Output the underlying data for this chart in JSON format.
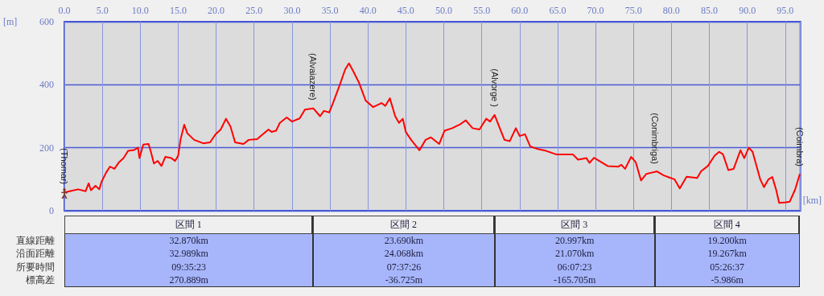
{
  "chart_data": [
    {
      "type": "line",
      "xlabel": "[km]",
      "ylabel": "[m]",
      "x": [
        0,
        0.7,
        1.8,
        2.8,
        3.2,
        3.5,
        4.1,
        4.6,
        4.9,
        5.5,
        6.0,
        6.6,
        7.2,
        7.8,
        8.4,
        9.2,
        9.7,
        9.9,
        10.4,
        11.1,
        11.4,
        11.8,
        12.3,
        12.8,
        13.3,
        14.1,
        14.6,
        15.0,
        15.3,
        15.8,
        16.2,
        17.1,
        18.3,
        19.2,
        19.9,
        20.6,
        21.3,
        21.9,
        22.5,
        23.6,
        24.3,
        25.4,
        26.3,
        26.9,
        27.3,
        27.9,
        28.4,
        29.3,
        30.0,
        31.0,
        31.7,
        32.8,
        33.7,
        34.2,
        34.9,
        35.4,
        36.3,
        37.0,
        37.5,
        38.0,
        38.8,
        39.7,
        40.7,
        41.8,
        42.3,
        42.9,
        43.6,
        44.1,
        44.6,
        45.0,
        45.7,
        46.8,
        47.6,
        48.3,
        49.4,
        50.1,
        51.1,
        52.2,
        52.9,
        53.8,
        54.7,
        55.6,
        56.1,
        56.7,
        57.3,
        58.0,
        58.7,
        59.5,
        60.0,
        60.7,
        61.4,
        62.4,
        63.5,
        64.8,
        67.0,
        67.7,
        68.8,
        69.2,
        69.8,
        71.6,
        73.0,
        73.4,
        73.9,
        74.7,
        75.3,
        76.0,
        76.7,
        77.4,
        77.8,
        78.1,
        79.0,
        79.9,
        80.4,
        81.1,
        82.0,
        83.4,
        83.9,
        84.8,
        85.7,
        86.3,
        86.8,
        87.5,
        88.2,
        89.1,
        89.6,
        90.2,
        90.7,
        91.7,
        92.2,
        92.8,
        93.3,
        93.8,
        94.2,
        95.1,
        95.6,
        96.3,
        96.9
      ],
      "values": [
        58,
        62,
        68,
        62,
        87,
        65,
        79,
        68,
        92,
        121,
        140,
        133,
        154,
        167,
        190,
        193,
        200,
        167,
        210,
        212,
        187,
        150,
        158,
        142,
        171,
        167,
        158,
        175,
        225,
        273,
        246,
        225,
        214,
        217,
        242,
        258,
        292,
        267,
        217,
        212,
        225,
        227,
        246,
        258,
        250,
        254,
        279,
        296,
        283,
        293,
        321,
        325,
        300,
        317,
        312,
        342,
        400,
        448,
        468,
        446,
        408,
        350,
        329,
        342,
        333,
        357,
        300,
        279,
        292,
        250,
        225,
        192,
        225,
        233,
        212,
        254,
        262,
        275,
        287,
        262,
        258,
        292,
        283,
        304,
        267,
        225,
        221,
        262,
        237,
        243,
        204,
        196,
        190,
        179,
        179,
        162,
        167,
        152,
        168,
        142,
        140,
        146,
        133,
        171,
        154,
        96,
        117,
        121,
        123,
        125,
        112,
        104,
        100,
        71,
        108,
        104,
        125,
        142,
        175,
        187,
        179,
        129,
        133,
        192,
        167,
        200,
        187,
        100,
        75,
        100,
        107,
        67,
        25,
        27,
        29,
        67,
        115
      ],
      "color": "#ff0000",
      "marker": "none",
      "xlim": [
        0,
        97
      ],
      "xticks": [
        {
          "value": 0,
          "label": "0.0"
        },
        {
          "value": 5,
          "label": "5.0"
        },
        {
          "value": 10,
          "label": "10.0"
        },
        {
          "value": 15,
          "label": "15.0"
        },
        {
          "value": 20,
          "label": "20.0"
        },
        {
          "value": 25,
          "label": "25.0"
        },
        {
          "value": 30,
          "label": "30.0"
        },
        {
          "value": 35,
          "label": "35.0"
        },
        {
          "value": 40,
          "label": "40.0"
        },
        {
          "value": 45,
          "label": "45.0"
        },
        {
          "value": 50,
          "label": "50.0"
        },
        {
          "value": 55,
          "label": "55.0"
        },
        {
          "value": 60,
          "label": "60.0"
        },
        {
          "value": 65,
          "label": "65.0"
        },
        {
          "value": 70,
          "label": "70.0"
        },
        {
          "value": 75,
          "label": "75.0"
        },
        {
          "value": 80,
          "label": "80.0"
        },
        {
          "value": 85,
          "label": "85.0"
        },
        {
          "value": 90,
          "label": "90.0"
        },
        {
          "value": 95,
          "label": "95.0"
        }
      ],
      "ylim": [
        0,
        600
      ],
      "yticks": [
        0,
        200,
        400,
        600
      ],
      "grid": true,
      "annotations": [
        {
          "text": "(Thomar)",
          "x": 0,
          "y": 58
        },
        {
          "text": "(Alvaiazere)",
          "x": 32.8,
          "y": 325
        },
        {
          "text": "(Alvorge )",
          "x": 56.7,
          "y": 304
        },
        {
          "text": "(Conimbriga)",
          "x": 77.8,
          "y": 123
        },
        {
          "text": "(Coimbra)",
          "x": 96.9,
          "y": 115
        }
      ]
    },
    {
      "type": "other",
      "categories": [
        "区間 1",
        "区間 2",
        "区間 3",
        "区間 4"
      ],
      "y_categories": [
        "直線距離",
        "沿面距離",
        "所要時間",
        "標高差"
      ],
      "cell_labels": [
        [
          "32.870km",
          "23.690km",
          "20.997km",
          "19.200km"
        ],
        [
          "32.989km",
          "24.068km",
          "21.070km",
          "19.267km"
        ],
        [
          "09:35:23",
          "07:37:26",
          "06:07:23",
          "05:26:37"
        ],
        [
          "270.889m",
          "-36.725m",
          "-165.705m",
          "-5.986m"
        ]
      ]
    }
  ]
}
